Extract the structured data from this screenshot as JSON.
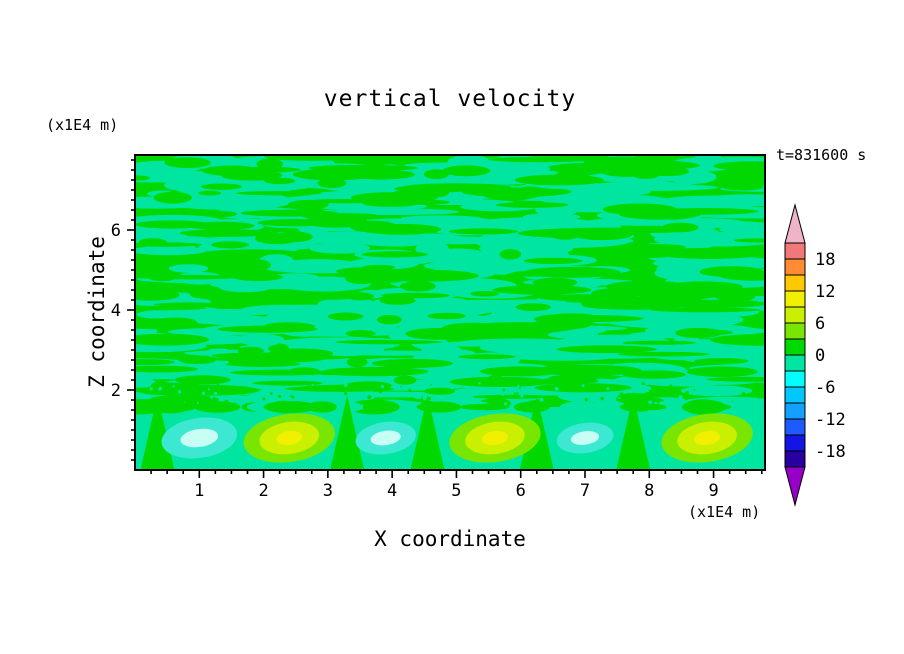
{
  "title": "vertical velocity",
  "time_label": "t=831600 s",
  "x_axis": {
    "label": "X coordinate",
    "unit": "(x1E4 m)",
    "ticks": [
      "1",
      "2",
      "3",
      "4",
      "5",
      "6",
      "7",
      "8",
      "9"
    ]
  },
  "y_axis": {
    "label": "Z coordinate",
    "unit": "(x1E4 m)",
    "ticks": [
      "2",
      "4",
      "6"
    ]
  },
  "colorbar": {
    "labels": [
      "18",
      "12",
      "6",
      "0",
      "-6",
      "-12",
      "-18"
    ],
    "vmin": -21,
    "vmax": 21,
    "step": 3,
    "colors": [
      "#2800a0",
      "#1414e6",
      "#1e5aff",
      "#14a0ff",
      "#00c8ff",
      "#00ffff",
      "#00e6a0",
      "#00d800",
      "#78e600",
      "#c8f000",
      "#f0f000",
      "#ffc800",
      "#ff8c32",
      "#f07878"
    ],
    "over": "#f0b4c8",
    "under": "#9600c8"
  },
  "field_colors": {
    "base": "#00d800",
    "mottle": "#00e6a0",
    "cyan": "#3ce8d2",
    "pale_cyan": "#c8fff5",
    "light_green": "#78e600",
    "yellow_green": "#c8f000",
    "yellow": "#f0f000"
  },
  "chart_data": {
    "type": "heatmap",
    "title": "vertical velocity",
    "xlabel": "X coordinate (x1E4 m)",
    "ylabel": "Z coordinate (x1E4 m)",
    "time_annotation": "t=831600 s",
    "xlim": [
      0,
      9.8
    ],
    "ylim": [
      0,
      7.875
    ],
    "xticks": [
      1,
      2,
      3,
      4,
      5,
      6,
      7,
      8,
      9
    ],
    "yticks": [
      2,
      4,
      6
    ],
    "contour_levels": [
      -21,
      -18,
      -15,
      -12,
      -9,
      -6,
      -3,
      0,
      3,
      6,
      9,
      12,
      15,
      18,
      21
    ],
    "labeled_levels": [
      18,
      12,
      6,
      0,
      -6,
      -12,
      -18
    ],
    "description": "Filled-contour vertical velocity cross-section: near-zero mottled green/mint field aloft (between roughly -3 and +3), with a row of alternating downdraft (cyan, negative) and updraft (yellow-green/yellow, positive) cells near the surface below z of about 2.",
    "background_value_range": [
      -3,
      3
    ],
    "surface_cells": [
      {
        "x": 1.0,
        "z": 0.8,
        "sign": "negative",
        "peak_level": -9,
        "scale": 1.0
      },
      {
        "x": 2.4,
        "z": 0.8,
        "sign": "positive",
        "peak_level": 12,
        "scale": 1.0
      },
      {
        "x": 3.9,
        "z": 0.8,
        "sign": "negative",
        "peak_level": -6,
        "scale": 0.8
      },
      {
        "x": 5.6,
        "z": 0.8,
        "sign": "positive",
        "peak_level": 12,
        "scale": 1.0
      },
      {
        "x": 7.0,
        "z": 0.8,
        "sign": "negative",
        "peak_level": -6,
        "scale": 0.75
      },
      {
        "x": 8.9,
        "z": 0.8,
        "sign": "positive",
        "peak_level": 12,
        "scale": 1.0
      }
    ],
    "green_cusps_x": [
      0.35,
      3.3,
      4.55,
      6.25,
      7.75
    ]
  }
}
